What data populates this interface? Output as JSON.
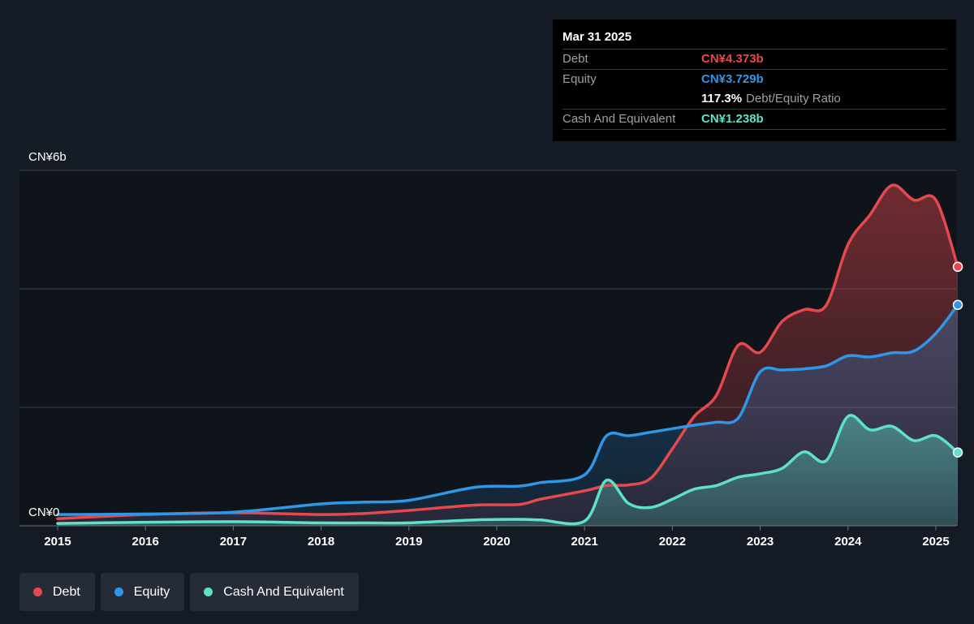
{
  "tooltip": {
    "date": "Mar 31 2025",
    "rows": [
      {
        "label": "Debt",
        "value": "CN¥4.373b"
      },
      {
        "label": "Equity",
        "value": "CN¥3.729b"
      },
      {
        "ratio_value": "117.3%",
        "ratio_label": "Debt/Equity Ratio"
      },
      {
        "label": "Cash And Equivalent",
        "value": "CN¥1.238b"
      }
    ]
  },
  "legend": [
    {
      "label": "Debt",
      "color": "#e5484d"
    },
    {
      "label": "Equity",
      "color": "#2f97e8"
    },
    {
      "label": "Cash And Equivalent",
      "color": "#5fe0c8"
    }
  ],
  "chart_data": {
    "type": "area",
    "y_axis_labels": [
      "CN¥6b",
      "CN¥0"
    ],
    "ylim": [
      0,
      6
    ],
    "xlim": [
      2015,
      2025.25
    ],
    "x_ticks": [
      "2015",
      "2016",
      "2017",
      "2018",
      "2019",
      "2020",
      "2021",
      "2022",
      "2023",
      "2024",
      "2025"
    ],
    "grid": true,
    "series": [
      {
        "name": "Debt",
        "color": "#e5484d",
        "points": [
          [
            2015.0,
            0.12
          ],
          [
            2016.0,
            0.19
          ],
          [
            2017.0,
            0.22
          ],
          [
            2018.0,
            0.19
          ],
          [
            2018.5,
            0.21
          ],
          [
            2019.0,
            0.26
          ],
          [
            2019.75,
            0.35
          ],
          [
            2020.25,
            0.36
          ],
          [
            2020.5,
            0.45
          ],
          [
            2021.0,
            0.59
          ],
          [
            2021.25,
            0.68
          ],
          [
            2021.5,
            0.69
          ],
          [
            2021.75,
            0.8
          ],
          [
            2022.0,
            1.3
          ],
          [
            2022.25,
            1.85
          ],
          [
            2022.5,
            2.2
          ],
          [
            2022.75,
            3.05
          ],
          [
            2023.0,
            2.93
          ],
          [
            2023.25,
            3.45
          ],
          [
            2023.5,
            3.65
          ],
          [
            2023.75,
            3.72
          ],
          [
            2024.0,
            4.75
          ],
          [
            2024.25,
            5.25
          ],
          [
            2024.5,
            5.75
          ],
          [
            2024.75,
            5.5
          ],
          [
            2025.0,
            5.5
          ],
          [
            2025.25,
            4.373
          ]
        ]
      },
      {
        "name": "Equity",
        "color": "#2f97e8",
        "points": [
          [
            2015.0,
            0.19
          ],
          [
            2016.0,
            0.2
          ],
          [
            2017.0,
            0.23
          ],
          [
            2018.0,
            0.37
          ],
          [
            2018.5,
            0.4
          ],
          [
            2019.0,
            0.43
          ],
          [
            2019.75,
            0.65
          ],
          [
            2020.25,
            0.67
          ],
          [
            2020.5,
            0.73
          ],
          [
            2021.0,
            0.86
          ],
          [
            2021.25,
            1.52
          ],
          [
            2021.5,
            1.52
          ],
          [
            2021.75,
            1.58
          ],
          [
            2022.0,
            1.64
          ],
          [
            2022.25,
            1.7
          ],
          [
            2022.5,
            1.75
          ],
          [
            2022.75,
            1.82
          ],
          [
            2023.0,
            2.6
          ],
          [
            2023.25,
            2.63
          ],
          [
            2023.5,
            2.65
          ],
          [
            2023.75,
            2.7
          ],
          [
            2024.0,
            2.87
          ],
          [
            2024.25,
            2.85
          ],
          [
            2024.5,
            2.92
          ],
          [
            2024.75,
            2.95
          ],
          [
            2025.0,
            3.25
          ],
          [
            2025.25,
            3.729
          ]
        ]
      },
      {
        "name": "Cash And Equivalent",
        "color": "#5fe0c8",
        "points": [
          [
            2015.0,
            0.04
          ],
          [
            2016.0,
            0.06
          ],
          [
            2017.0,
            0.07
          ],
          [
            2018.0,
            0.05
          ],
          [
            2018.5,
            0.05
          ],
          [
            2019.0,
            0.05
          ],
          [
            2019.75,
            0.1
          ],
          [
            2020.25,
            0.11
          ],
          [
            2020.5,
            0.1
          ],
          [
            2021.0,
            0.08
          ],
          [
            2021.25,
            0.77
          ],
          [
            2021.5,
            0.38
          ],
          [
            2021.75,
            0.31
          ],
          [
            2022.0,
            0.45
          ],
          [
            2022.25,
            0.62
          ],
          [
            2022.5,
            0.68
          ],
          [
            2022.75,
            0.82
          ],
          [
            2023.0,
            0.88
          ],
          [
            2023.25,
            0.97
          ],
          [
            2023.5,
            1.25
          ],
          [
            2023.75,
            1.1
          ],
          [
            2024.0,
            1.85
          ],
          [
            2024.25,
            1.62
          ],
          [
            2024.5,
            1.68
          ],
          [
            2024.75,
            1.44
          ],
          [
            2025.0,
            1.52
          ],
          [
            2025.25,
            1.238
          ]
        ]
      }
    ]
  }
}
